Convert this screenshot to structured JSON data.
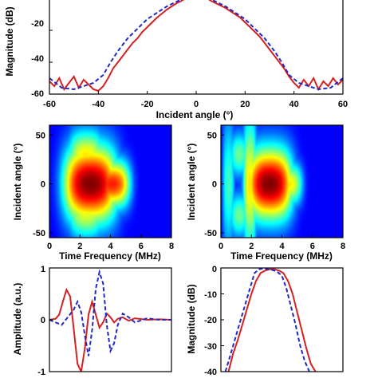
{
  "chart_data": [
    {
      "id": "top",
      "type": "line",
      "xlabel": "Incident angle (°)",
      "ylabel": "Magnitude (dB)",
      "xlim": [
        -60,
        60
      ],
      "ylim": [
        -60,
        0
      ],
      "xticks": [
        -60,
        -40,
        -20,
        0,
        20,
        40,
        60
      ],
      "yticks": [
        -20,
        -40,
        -60
      ],
      "ytick_labels": [
        "-20",
        "-40",
        "-60"
      ],
      "series": [
        {
          "style": "solid",
          "color": "#d42020",
          "x": [
            -60,
            -58,
            -56,
            -54,
            -52,
            -50,
            -48,
            -46,
            -44,
            -42,
            -40,
            -38,
            -36,
            -34,
            -32,
            -30,
            -28,
            -26,
            -24,
            -22,
            -20,
            -18,
            -16,
            -14,
            -12,
            -10,
            -8,
            -6,
            -5,
            5,
            6,
            8,
            10,
            12,
            14,
            16,
            18,
            20,
            22,
            24,
            26,
            28,
            30,
            32,
            34,
            36,
            38,
            40,
            42,
            44,
            46,
            48,
            50,
            52,
            54,
            56,
            58,
            60
          ],
          "y": [
            -52,
            -55,
            -50,
            -57,
            -53,
            -49,
            -56,
            -51,
            -54,
            -57,
            -58,
            -55,
            -50,
            -44,
            -40,
            -36,
            -32,
            -28,
            -25,
            -21,
            -18,
            -15,
            -12,
            -9.5,
            -7,
            -5,
            -3,
            -1.5,
            -0.5,
            -0.5,
            -1.5,
            -3,
            -4.5,
            -6,
            -8,
            -10,
            -12,
            -15,
            -18,
            -21,
            -24,
            -28,
            -32,
            -36,
            -40,
            -44,
            -49,
            -53,
            -56,
            -51,
            -55,
            -50,
            -57,
            -52,
            -55,
            -50,
            -54,
            -51
          ]
        },
        {
          "style": "dashed",
          "color": "#2028c8",
          "x": [
            -60,
            -55,
            -50,
            -46,
            -42,
            -38,
            -35,
            -32,
            -30,
            -28,
            -26,
            -24,
            -22,
            -20,
            -18,
            -16,
            -14,
            -12,
            -10,
            -8,
            -6,
            6,
            8,
            10,
            12,
            14,
            16,
            18,
            20,
            22,
            24,
            26,
            28,
            30,
            32,
            35,
            38,
            42,
            46,
            50,
            55,
            60
          ],
          "y": [
            -50,
            -56,
            -57,
            -55,
            -53,
            -48,
            -40,
            -33,
            -29,
            -25,
            -22,
            -19,
            -16,
            -13,
            -11,
            -9,
            -7,
            -5,
            -3.5,
            -2,
            -0.5,
            -0.5,
            -2,
            -3.5,
            -5,
            -7,
            -9,
            -11,
            -13,
            -16,
            -19,
            -22,
            -25,
            -29,
            -33,
            -40,
            -48,
            -53,
            -55,
            -57,
            -56,
            -50
          ]
        }
      ]
    },
    {
      "id": "mid-left",
      "type": "heatmap",
      "xlabel": "Time Frequency (MHz)",
      "ylabel": "Incident angle (°)",
      "xlim": [
        0,
        8
      ],
      "ylim": [
        -55,
        60
      ],
      "xticks": [
        0,
        2,
        4,
        6,
        8
      ],
      "yticks": [
        50,
        0,
        -50
      ],
      "colormap": "jet",
      "blobs": [
        {
          "cx": 2.7,
          "cy": 0,
          "sx": 1.35,
          "sy": 26,
          "amp": 1.0
        },
        {
          "cx": 4.1,
          "cy": 0,
          "sx": 0.9,
          "sy": 16,
          "amp": 0.8
        },
        {
          "cx": 2.4,
          "cy": 28,
          "sx": 0.9,
          "sy": 18,
          "amp": 0.55
        },
        {
          "cx": 2.4,
          "cy": -28,
          "sx": 0.9,
          "sy": 18,
          "amp": 0.5
        }
      ]
    },
    {
      "id": "mid-right",
      "type": "heatmap",
      "xlabel": "Time Frequency (MHz)",
      "ylabel": "Incident angle (°)",
      "xlim": [
        0,
        8
      ],
      "ylim": [
        -55,
        60
      ],
      "xticks": [
        0,
        2,
        4,
        6,
        8
      ],
      "yticks": [
        50,
        0,
        -50
      ],
      "colormap": "jet",
      "blobs": [
        {
          "cx": 3.2,
          "cy": 0,
          "sx": 1.15,
          "sy": 24,
          "amp": 1.0
        },
        {
          "cx": 4.4,
          "cy": 0,
          "sx": 0.7,
          "sy": 14,
          "amp": 0.55
        },
        {
          "cx": 1.9,
          "cy": 0,
          "sx": 0.35,
          "sy": 45,
          "amp": 0.55
        },
        {
          "cx": 1.2,
          "cy": 30,
          "sx": 0.45,
          "sy": 15,
          "amp": 0.35
        },
        {
          "cx": 1.2,
          "cy": -32,
          "sx": 0.45,
          "sy": 15,
          "amp": 0.35
        },
        {
          "cx": 0.5,
          "cy": 0,
          "sx": 0.3,
          "sy": 45,
          "amp": 0.3
        }
      ]
    },
    {
      "id": "bottom-left",
      "type": "line",
      "xlabel": "",
      "ylabel": "Amplitude (a.u.)",
      "xlim": [
        0,
        10
      ],
      "ylim": [
        -1,
        1
      ],
      "yticks": [
        1,
        0,
        -1
      ],
      "ytick_labels": [
        "1",
        "0",
        "-1"
      ],
      "series": [
        {
          "style": "solid",
          "color": "#d42020",
          "x": [
            0,
            0.5,
            0.8,
            1.1,
            1.4,
            1.7,
            2.0,
            2.3,
            2.6,
            2.9,
            3.2,
            3.5,
            3.8,
            4.1,
            4.4,
            4.7,
            5.0,
            5.3,
            5.6,
            6.0,
            6.5,
            7.0,
            8.0,
            9.0,
            10.0
          ],
          "y": [
            0,
            0.02,
            0.1,
            0.35,
            0.58,
            0.45,
            -0.2,
            -0.85,
            -1.0,
            -0.55,
            0.1,
            0.35,
            0.1,
            -0.15,
            -0.05,
            0.12,
            0.05,
            -0.05,
            0.02,
            0.05,
            -0.02,
            0.03,
            0,
            0.01,
            0
          ]
        },
        {
          "style": "dashed",
          "color": "#2028c8",
          "x": [
            0,
            0.5,
            1.0,
            1.5,
            2.0,
            2.3,
            2.6,
            2.9,
            3.2,
            3.5,
            3.8,
            4.1,
            4.4,
            4.7,
            5.0,
            5.3,
            5.6,
            6.0,
            6.5,
            7.0,
            8.0,
            9.0,
            10.0
          ],
          "y": [
            0,
            -0.05,
            -0.1,
            0.05,
            0.2,
            0.35,
            0.15,
            -0.3,
            -0.7,
            -0.2,
            0.6,
            0.92,
            0.7,
            -0.1,
            -0.6,
            -0.45,
            -0.1,
            0.12,
            0.05,
            -0.05,
            0.03,
            0,
            0
          ]
        }
      ]
    },
    {
      "id": "bottom-right",
      "type": "line",
      "xlabel": "",
      "ylabel": "Magnitude (dB)",
      "xlim": [
        0,
        8
      ],
      "ylim": [
        -40,
        0
      ],
      "yticks": [
        0,
        -10,
        -20,
        -30,
        -40
      ],
      "ytick_labels": [
        "0",
        "-10",
        "-20",
        "-30",
        "-40"
      ],
      "series": [
        {
          "style": "solid",
          "color": "#d42020",
          "x": [
            0.5,
            0.8,
            1.1,
            1.4,
            1.7,
            2.0,
            2.3,
            2.6,
            2.9,
            3.2,
            3.5,
            3.8,
            4.1,
            4.4,
            4.7,
            5.0,
            5.3,
            5.6,
            5.9,
            6.2
          ],
          "y": [
            -40,
            -33,
            -28,
            -22,
            -16,
            -10,
            -5,
            -2,
            -1,
            -0.5,
            -0.5,
            -1,
            -2,
            -5,
            -10,
            -17,
            -24,
            -31,
            -37,
            -40
          ]
        },
        {
          "style": "dashed",
          "color": "#2028c8",
          "x": [
            0.3,
            0.6,
            0.9,
            1.2,
            1.5,
            1.8,
            2.0,
            2.2,
            2.5,
            2.8,
            3.1,
            3.4,
            3.7,
            4.0,
            4.3,
            4.6,
            4.9,
            5.2,
            5.5,
            5.8
          ],
          "y": [
            -40,
            -34,
            -28,
            -22,
            -16,
            -10,
            -6,
            -2,
            -0.5,
            -0.2,
            -0.5,
            -0.8,
            -1.5,
            -3,
            -8,
            -15,
            -22,
            -30,
            -36,
            -40
          ]
        }
      ]
    }
  ]
}
